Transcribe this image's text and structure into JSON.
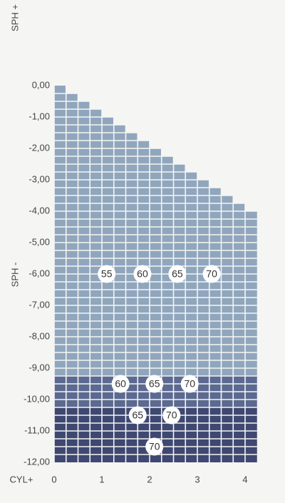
{
  "chart_data": {
    "type": "grid",
    "y_label_top": "SPH +",
    "y_label": "SPH -",
    "x_label": "CYL+",
    "xlim": [
      0,
      4.25
    ],
    "ylim": [
      -12,
      0
    ],
    "xticks": [
      0,
      1,
      2,
      3,
      4
    ],
    "yticks": [
      {
        "value": 0,
        "label": "0,00"
      },
      {
        "value": -1,
        "label": "-1,00"
      },
      {
        "value": -2,
        "label": "-2,00"
      },
      {
        "value": -3,
        "label": "-3,00"
      },
      {
        "value": -4,
        "label": "-4,00"
      },
      {
        "value": -5,
        "label": "-5,00"
      },
      {
        "value": -6,
        "label": "-6,00"
      },
      {
        "value": -7,
        "label": "-7,00"
      },
      {
        "value": -8,
        "label": "-8,00"
      },
      {
        "value": -9,
        "label": "-9,00"
      },
      {
        "value": -10,
        "label": "-10,00"
      },
      {
        "value": -11,
        "label": "-11,00"
      },
      {
        "value": -12,
        "label": "-12,00"
      }
    ],
    "cell_size": 0.25,
    "zones": [
      {
        "from": 0,
        "to": -9.25,
        "color": "#90a6bd"
      },
      {
        "from": -9.25,
        "to": -10.25,
        "color": "#5c6a91"
      },
      {
        "from": -10.25,
        "to": -12,
        "color": "#3e4871"
      }
    ],
    "points": [
      {
        "label": "55",
        "x": 1.1,
        "y": -6
      },
      {
        "label": "60",
        "x": 1.85,
        "y": -6
      },
      {
        "label": "65",
        "x": 2.58,
        "y": -6
      },
      {
        "label": "70",
        "x": 3.3,
        "y": -6
      },
      {
        "label": "60",
        "x": 1.39,
        "y": -9.5
      },
      {
        "label": "65",
        "x": 2.1,
        "y": -9.5
      },
      {
        "label": "70",
        "x": 2.84,
        "y": -9.5
      },
      {
        "label": "65",
        "x": 1.75,
        "y": -10.5
      },
      {
        "label": "70",
        "x": 2.46,
        "y": -10.5
      },
      {
        "label": "70",
        "x": 2.1,
        "y": -11.5
      }
    ]
  }
}
